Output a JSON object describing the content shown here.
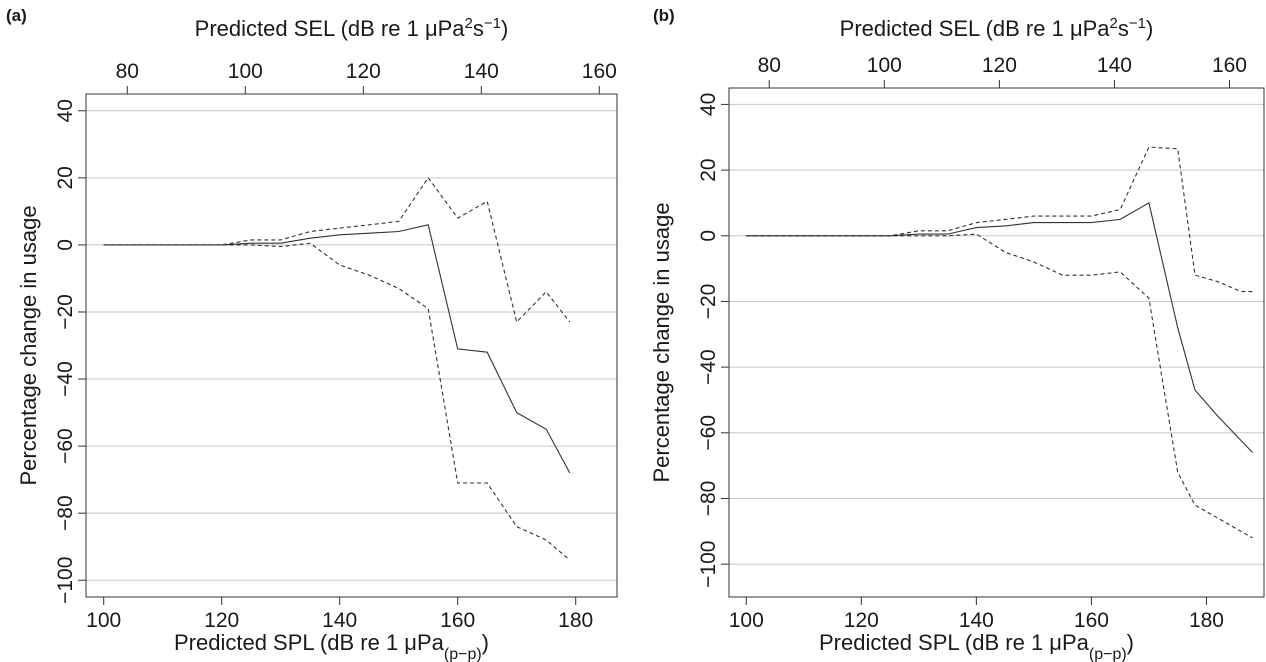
{
  "chart_data": [
    {
      "type": "line",
      "panel_label": "(a)",
      "ylabel": "Percentage change in usage",
      "xlabel_bottom": {
        "main": "Predicted SPL (dB re 1 μPa",
        "sub": "(p−p)",
        "close": ")"
      },
      "xlabel_top": {
        "main": "Predicted SEL (dB re 1 μPa",
        "sup1": "2",
        "mid": "s",
        "sup2": "−1",
        "close": ")"
      },
      "ylim": [
        -105,
        45
      ],
      "y_ticks": [
        40,
        20,
        0,
        -20,
        -40,
        -60,
        -80,
        -100
      ],
      "y_tick_labels": [
        "40",
        "20",
        "0",
        "−20",
        "−40",
        "−60",
        "−80",
        "−100"
      ],
      "xlim": [
        97,
        187
      ],
      "x_ticks": [
        100,
        120,
        140,
        160,
        180
      ],
      "x_tick_labels": [
        "100",
        "120",
        "140",
        "160",
        "180"
      ],
      "top_xlim": [
        73,
        163
      ],
      "top_ticks": [
        80,
        100,
        120,
        140,
        160
      ],
      "top_tick_labels": [
        "80",
        "100",
        "120",
        "140",
        "160"
      ],
      "grid": "horizontal",
      "series": [
        {
          "style": "solid",
          "x": [
            100,
            105,
            110,
            115,
            120,
            125,
            130,
            135,
            140,
            145,
            150,
            155,
            160,
            165,
            170,
            175,
            179
          ],
          "y": [
            0,
            0,
            0,
            0,
            0,
            0.5,
            0.5,
            2,
            3,
            3.5,
            4,
            6,
            -31,
            -32,
            -50,
            -55,
            -68
          ]
        },
        {
          "style": "dashed",
          "x": [
            100,
            105,
            110,
            115,
            120,
            125,
            130,
            135,
            140,
            145,
            150,
            155,
            160,
            165,
            170,
            175,
            179
          ],
          "y": [
            0,
            0,
            0,
            0,
            0,
            1.5,
            1.5,
            4,
            5,
            6,
            7,
            20,
            8,
            13,
            -23,
            -14,
            -23
          ]
        },
        {
          "style": "dashed",
          "x": [
            100,
            105,
            110,
            115,
            120,
            125,
            130,
            135,
            140,
            145,
            150,
            155,
            160,
            165,
            170,
            175,
            179
          ],
          "y": [
            0,
            0,
            0,
            0,
            0,
            0,
            -0.5,
            0.5,
            -6,
            -9,
            -13,
            -19,
            -71,
            -71,
            -84,
            -88,
            -94
          ]
        }
      ]
    },
    {
      "type": "line",
      "panel_label": "(b)",
      "ylabel": "Percentage change in usage",
      "xlabel_bottom": {
        "main": "Predicted SPL (dB re 1 μPa",
        "sub": "(p−p)",
        "close": ")"
      },
      "xlabel_top": {
        "main": "Predicted SEL (dB re 1 μPa",
        "sup1": "2",
        "mid": "s",
        "sup2": "−1",
        "close": ")"
      },
      "ylim": [
        -110,
        45
      ],
      "y_ticks": [
        40,
        20,
        0,
        -20,
        -40,
        -60,
        -80,
        -100
      ],
      "y_tick_labels": [
        "40",
        "20",
        "0",
        "−20",
        "−40",
        "−60",
        "−80",
        "−100"
      ],
      "xlim": [
        97,
        190
      ],
      "x_ticks": [
        100,
        120,
        140,
        160,
        180
      ],
      "x_tick_labels": [
        "100",
        "120",
        "140",
        "160",
        "180"
      ],
      "top_xlim": [
        73,
        166
      ],
      "top_ticks": [
        80,
        100,
        120,
        140,
        160
      ],
      "top_tick_labels": [
        "80",
        "100",
        "120",
        "140",
        "160"
      ],
      "grid": "horizontal",
      "series": [
        {
          "style": "solid",
          "x": [
            100,
            105,
            110,
            115,
            120,
            125,
            130,
            135,
            140,
            145,
            150,
            155,
            160,
            165,
            170,
            175,
            178,
            182,
            188
          ],
          "y": [
            0,
            0,
            0,
            0,
            0,
            0,
            0.5,
            0.5,
            2.5,
            3,
            4,
            4,
            4,
            5,
            10,
            -28,
            -47,
            -55,
            -66
          ]
        },
        {
          "style": "dashed",
          "x": [
            100,
            105,
            110,
            115,
            120,
            125,
            130,
            135,
            140,
            145,
            150,
            155,
            160,
            165,
            170,
            175,
            178,
            182,
            186,
            188
          ],
          "y": [
            0,
            0,
            0,
            0,
            0,
            0,
            1.5,
            1.5,
            4,
            5,
            6,
            6,
            6,
            8,
            27,
            26.5,
            -12,
            -14,
            -17,
            -17
          ]
        },
        {
          "style": "dashed",
          "x": [
            100,
            105,
            110,
            115,
            120,
            125,
            130,
            135,
            140,
            145,
            150,
            155,
            160,
            165,
            170,
            175,
            178,
            182,
            188
          ],
          "y": [
            0,
            0,
            0,
            0,
            0,
            0,
            0,
            0,
            0.5,
            -5,
            -8,
            -12,
            -12,
            -11,
            -19,
            -72,
            -82,
            -86,
            -92
          ]
        }
      ]
    }
  ]
}
